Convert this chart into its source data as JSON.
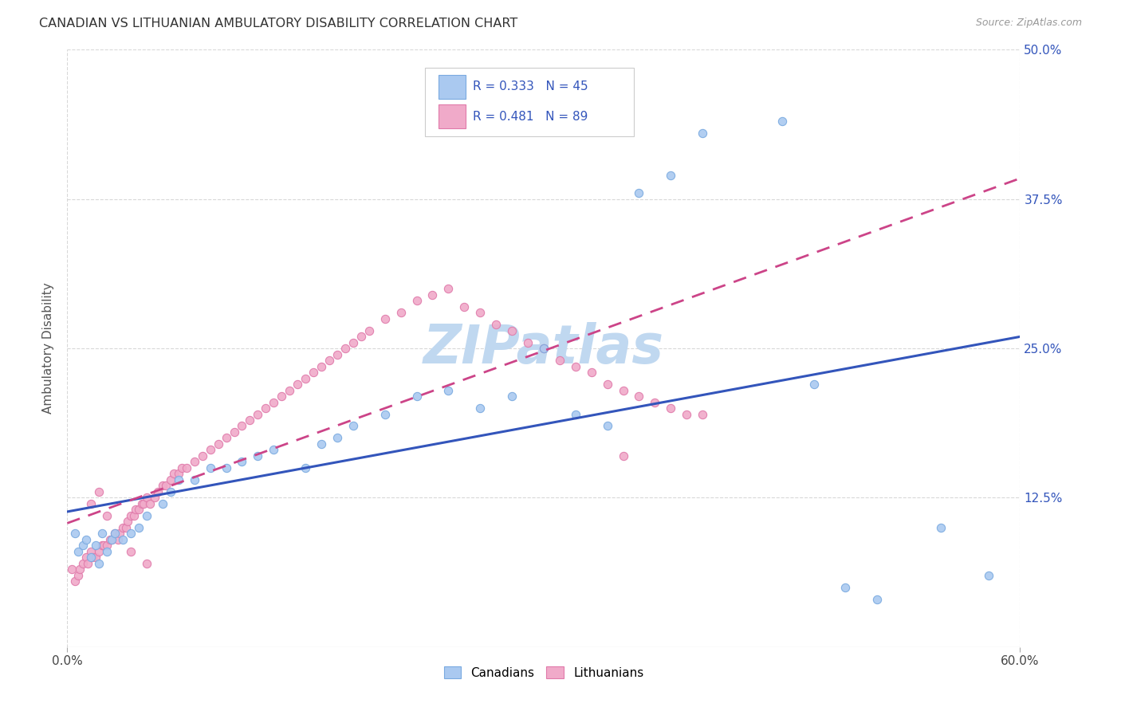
{
  "title": "CANADIAN VS LITHUANIAN AMBULATORY DISABILITY CORRELATION CHART",
  "source": "Source: ZipAtlas.com",
  "ylabel": "Ambulatory Disability",
  "xlim": [
    0,
    0.6
  ],
  "ylim": [
    0,
    0.5
  ],
  "ytick_positions": [
    0.125,
    0.25,
    0.375,
    0.5
  ],
  "ytick_labels": [
    "12.5%",
    "25.0%",
    "37.5%",
    "50.0%"
  ],
  "xtick_positions": [
    0.0,
    0.6
  ],
  "xtick_labels": [
    "0.0%",
    "60.0%"
  ],
  "grid_color": "#d8d8d8",
  "background_color": "#ffffff",
  "canadian_color": "#aac9f0",
  "canadian_edge_color": "#7aaae0",
  "lithuanian_color": "#f0aac9",
  "lithuanian_edge_color": "#e07aaa",
  "canadian_line_color": "#3355bb",
  "lithuanian_line_color": "#cc4488",
  "R_canadian": 0.333,
  "N_canadian": 45,
  "R_lithuanian": 0.481,
  "N_lithuanian": 89,
  "legend_label_canadian": "Canadians",
  "legend_label_lithuanian": "Lithuanians",
  "watermark_text": "ZIPatlas",
  "watermark_color": "#c0d8f0",
  "marker_size": 55,
  "canadians_x": [
    0.005,
    0.007,
    0.01,
    0.012,
    0.015,
    0.018,
    0.02,
    0.022,
    0.025,
    0.028,
    0.03,
    0.035,
    0.04,
    0.045,
    0.05,
    0.06,
    0.065,
    0.07,
    0.08,
    0.09,
    0.1,
    0.11,
    0.12,
    0.13,
    0.15,
    0.16,
    0.17,
    0.18,
    0.2,
    0.22,
    0.24,
    0.26,
    0.28,
    0.3,
    0.32,
    0.34,
    0.36,
    0.38,
    0.4,
    0.45,
    0.47,
    0.49,
    0.51,
    0.55,
    0.58
  ],
  "canadians_y": [
    0.095,
    0.08,
    0.085,
    0.09,
    0.075,
    0.085,
    0.07,
    0.095,
    0.08,
    0.09,
    0.095,
    0.09,
    0.095,
    0.1,
    0.11,
    0.12,
    0.13,
    0.14,
    0.14,
    0.15,
    0.15,
    0.155,
    0.16,
    0.165,
    0.15,
    0.17,
    0.175,
    0.185,
    0.195,
    0.21,
    0.215,
    0.2,
    0.21,
    0.25,
    0.195,
    0.185,
    0.38,
    0.395,
    0.43,
    0.44,
    0.22,
    0.05,
    0.04,
    0.1,
    0.06
  ],
  "lithuanians_x": [
    0.003,
    0.005,
    0.007,
    0.008,
    0.01,
    0.012,
    0.013,
    0.015,
    0.016,
    0.018,
    0.02,
    0.022,
    0.023,
    0.025,
    0.027,
    0.028,
    0.03,
    0.032,
    0.033,
    0.035,
    0.037,
    0.038,
    0.04,
    0.042,
    0.043,
    0.045,
    0.047,
    0.048,
    0.05,
    0.052,
    0.055,
    0.057,
    0.06,
    0.062,
    0.065,
    0.067,
    0.07,
    0.072,
    0.075,
    0.08,
    0.085,
    0.09,
    0.095,
    0.1,
    0.105,
    0.11,
    0.115,
    0.12,
    0.125,
    0.13,
    0.135,
    0.14,
    0.145,
    0.15,
    0.155,
    0.16,
    0.165,
    0.17,
    0.175,
    0.18,
    0.185,
    0.19,
    0.2,
    0.21,
    0.22,
    0.23,
    0.24,
    0.25,
    0.26,
    0.27,
    0.28,
    0.29,
    0.3,
    0.31,
    0.32,
    0.33,
    0.34,
    0.35,
    0.36,
    0.37,
    0.38,
    0.39,
    0.4,
    0.35,
    0.015,
    0.02,
    0.025,
    0.04,
    0.05
  ],
  "lithuanians_y": [
    0.065,
    0.055,
    0.06,
    0.065,
    0.07,
    0.075,
    0.07,
    0.08,
    0.075,
    0.075,
    0.08,
    0.085,
    0.085,
    0.085,
    0.09,
    0.09,
    0.095,
    0.09,
    0.095,
    0.1,
    0.1,
    0.105,
    0.11,
    0.11,
    0.115,
    0.115,
    0.12,
    0.12,
    0.125,
    0.12,
    0.125,
    0.13,
    0.135,
    0.135,
    0.14,
    0.145,
    0.145,
    0.15,
    0.15,
    0.155,
    0.16,
    0.165,
    0.17,
    0.175,
    0.18,
    0.185,
    0.19,
    0.195,
    0.2,
    0.205,
    0.21,
    0.215,
    0.22,
    0.225,
    0.23,
    0.235,
    0.24,
    0.245,
    0.25,
    0.255,
    0.26,
    0.265,
    0.275,
    0.28,
    0.29,
    0.295,
    0.3,
    0.285,
    0.28,
    0.27,
    0.265,
    0.255,
    0.25,
    0.24,
    0.235,
    0.23,
    0.22,
    0.215,
    0.21,
    0.205,
    0.2,
    0.195,
    0.195,
    0.16,
    0.12,
    0.13,
    0.11,
    0.08,
    0.07
  ]
}
